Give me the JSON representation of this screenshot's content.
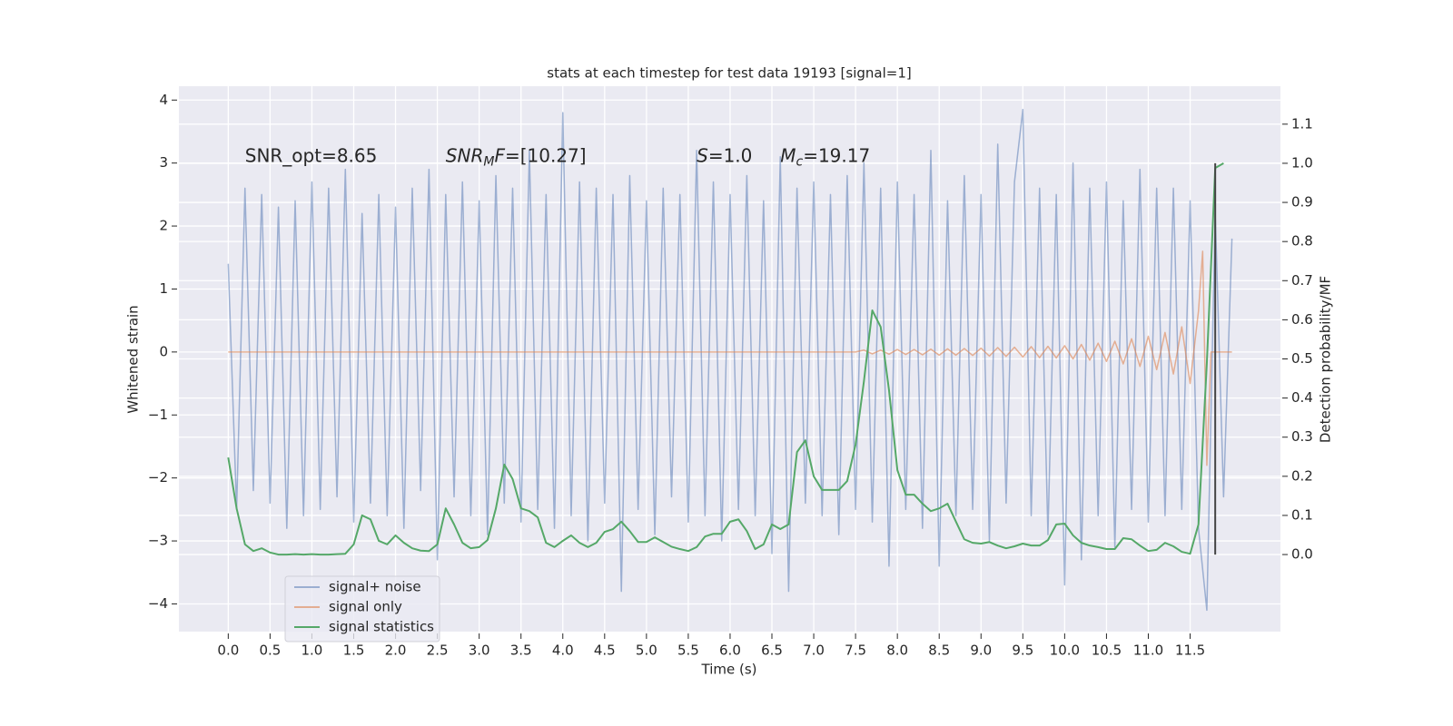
{
  "chart_data": {
    "type": "line",
    "title": "stats at each timestep for test data 19193 [signal=1]",
    "xlabel": "Time (s)",
    "ylabel": "Whitened strain",
    "y2label": "Detection probability/MF",
    "xlim": [
      -0.59,
      12.58
    ],
    "ylim": [
      -4.44,
      4.22
    ],
    "y2lim": [
      -0.197,
      1.197
    ],
    "xticks": [
      {
        "value": 0,
        "label": "0.0"
      },
      0.5,
      {
        "value": 1,
        "label": "1.0"
      },
      1.5,
      {
        "value": 2,
        "label": "2.0"
      },
      2.5,
      {
        "value": 3,
        "label": "3.0"
      },
      3.5,
      {
        "value": 4,
        "label": "4.0"
      },
      4.5,
      {
        "value": 5,
        "label": "5.0"
      },
      5.5,
      {
        "value": 6,
        "label": "6.0"
      },
      6.5,
      {
        "value": 7,
        "label": "7.0"
      },
      7.5,
      {
        "value": 8,
        "label": "8.0"
      },
      8.5,
      {
        "value": 9,
        "label": "9.0"
      },
      9.5,
      {
        "value": 10,
        "label": "10.0"
      },
      10.5,
      {
        "value": 11,
        "label": "11.0"
      },
      11.5
    ],
    "yticks": [
      {
        "value": -4,
        "label": "−4"
      },
      {
        "value": -3,
        "label": "−3"
      },
      {
        "value": -2,
        "label": "−2"
      },
      {
        "value": -1,
        "label": "−1"
      },
      0,
      1,
      2,
      3,
      4
    ],
    "y2ticks": [
      {
        "value": 0,
        "label": "0.0"
      },
      0.1,
      0.2,
      0.3,
      0.4,
      0.5,
      0.6,
      0.7,
      0.8,
      0.9,
      {
        "value": 1,
        "label": "1.0"
      },
      1.1
    ],
    "grid": true,
    "legend": "lower left",
    "series": [
      {
        "name": "signal+ noise",
        "color": "#4c72b0",
        "opacity": 0.5,
        "x": [
          0,
          0.1,
          0.2,
          0.3,
          0.4,
          0.5,
          0.6,
          0.7,
          0.8,
          0.9,
          1,
          1.1,
          1.2,
          1.3,
          1.4,
          1.5,
          1.6,
          1.7,
          1.8,
          1.9,
          2,
          2.1,
          2.2,
          2.3,
          2.4,
          2.5,
          2.6,
          2.7,
          2.8,
          2.9,
          3,
          3.1,
          3.2,
          3.3,
          3.4,
          3.5,
          3.6,
          3.7,
          3.8,
          3.9,
          4,
          4.1,
          4.2,
          4.3,
          4.4,
          4.5,
          4.6,
          4.7,
          4.8,
          4.9,
          5,
          5.1,
          5.2,
          5.3,
          5.4,
          5.5,
          5.6,
          5.7,
          5.8,
          5.9,
          6,
          6.1,
          6.2,
          6.3,
          6.4,
          6.5,
          6.6,
          6.7,
          6.8,
          6.9,
          7,
          7.1,
          7.2,
          7.3,
          7.4,
          7.5,
          7.6,
          7.7,
          7.8,
          7.9,
          8,
          8.1,
          8.2,
          8.3,
          8.4,
          8.5,
          8.6,
          8.7,
          8.8,
          8.9,
          9,
          9.1,
          9.2,
          9.3,
          9.4,
          9.5,
          9.6,
          9.7,
          9.8,
          9.9,
          10,
          10.1,
          10.2,
          10.3,
          10.4,
          10.5,
          10.6,
          10.7,
          10.8,
          10.9,
          11,
          11.1,
          11.2,
          11.3,
          11.4,
          11.5,
          11.6,
          11.7,
          11.8,
          11.9,
          12
        ],
        "values": [
          1.4,
          -2.5,
          2.6,
          -2.2,
          2.5,
          -2.4,
          2.3,
          -2.8,
          2.4,
          -2.6,
          2.7,
          -2.5,
          2.6,
          -2.3,
          2.9,
          -2.7,
          2.2,
          -2.4,
          2.5,
          -2.6,
          2.3,
          -2.8,
          2.6,
          -2.2,
          2.9,
          -3.3,
          2.5,
          -2.3,
          2.7,
          -2.6,
          2.4,
          -2.9,
          2.8,
          -2.4,
          2.6,
          -2.7,
          3.2,
          -2.5,
          2.5,
          -2.8,
          3.8,
          -2.6,
          2.7,
          -3.0,
          2.6,
          -2.4,
          2.5,
          -3.8,
          2.8,
          -2.5,
          2.4,
          -2.9,
          2.6,
          -2.3,
          2.5,
          -2.7,
          3.2,
          -2.6,
          2.7,
          -3.0,
          2.5,
          -2.5,
          2.8,
          -2.6,
          2.4,
          -3.2,
          3.1,
          -3.8,
          2.6,
          -2.4,
          2.7,
          -2.6,
          2.5,
          -2.9,
          2.8,
          -2.5,
          3.0,
          -2.7,
          2.6,
          -3.4,
          2.7,
          -2.5,
          2.5,
          -2.8,
          3.2,
          -3.4,
          2.4,
          -2.6,
          2.8,
          -2.5,
          2.5,
          -3.0,
          3.3,
          -2.4,
          2.7,
          3.85,
          -2.6,
          2.6,
          -2.9,
          2.5,
          -3.7,
          3.0,
          -3.3,
          2.6,
          -2.6,
          2.7,
          -3.1,
          2.4,
          -2.5,
          2.9,
          -2.7,
          2.6,
          -2.6,
          2.6,
          -2.5,
          2.4,
          -2.8,
          -4.1,
          2.2,
          -2.3,
          1.8
        ]
      },
      {
        "name": "signal only",
        "color": "#dd8452",
        "opacity": 0.6,
        "x": [
          0,
          7.5,
          7.6,
          7.7,
          7.8,
          7.9,
          8,
          8.1,
          8.2,
          8.3,
          8.4,
          8.5,
          8.6,
          8.7,
          8.8,
          8.9,
          9,
          9.1,
          9.2,
          9.3,
          9.4,
          9.5,
          9.6,
          9.7,
          9.8,
          9.9,
          10,
          10.1,
          10.2,
          10.3,
          10.4,
          10.5,
          10.6,
          10.7,
          10.8,
          10.9,
          11,
          11.1,
          11.2,
          11.3,
          11.4,
          11.5,
          11.6,
          11.65,
          11.7,
          11.75,
          12
        ],
        "values": [
          0,
          0,
          0.03,
          -0.03,
          0.03,
          -0.035,
          0.04,
          -0.04,
          0.04,
          -0.045,
          0.045,
          -0.05,
          0.05,
          -0.05,
          0.055,
          -0.055,
          0.06,
          -0.065,
          0.07,
          -0.07,
          0.075,
          -0.08,
          0.085,
          -0.09,
          0.09,
          -0.095,
          0.1,
          -0.11,
          0.12,
          -0.13,
          0.14,
          -0.15,
          0.17,
          -0.19,
          0.21,
          -0.23,
          0.25,
          -0.28,
          0.31,
          -0.35,
          0.4,
          -0.5,
          0.65,
          1.6,
          -1.8,
          0,
          0
        ]
      },
      {
        "name": "signal statistics",
        "color": "#55a868",
        "opacity": 1,
        "axis": "y2",
        "x": [
          0,
          0.1,
          0.2,
          0.3,
          0.4,
          0.5,
          0.6,
          0.7,
          0.8,
          0.9,
          1,
          1.1,
          1.2,
          1.3,
          1.4,
          1.5,
          1.6,
          1.7,
          1.8,
          1.9,
          2,
          2.1,
          2.2,
          2.3,
          2.4,
          2.5,
          2.6,
          2.7,
          2.8,
          2.9,
          3,
          3.1,
          3.2,
          3.3,
          3.4,
          3.5,
          3.6,
          3.7,
          3.8,
          3.9,
          4,
          4.1,
          4.2,
          4.3,
          4.4,
          4.5,
          4.6,
          4.7,
          4.8,
          4.9,
          5,
          5.1,
          5.2,
          5.3,
          5.4,
          5.5,
          5.6,
          5.7,
          5.8,
          5.9,
          6,
          6.1,
          6.2,
          6.3,
          6.4,
          6.5,
          6.6,
          6.7,
          6.8,
          6.9,
          7,
          7.1,
          7.2,
          7.3,
          7.4,
          7.5,
          7.6,
          7.7,
          7.8,
          7.9,
          8,
          8.1,
          8.2,
          8.3,
          8.4,
          8.5,
          8.6,
          8.7,
          8.8,
          8.9,
          9,
          9.1,
          9.2,
          9.3,
          9.4,
          9.5,
          9.6,
          9.7,
          9.8,
          9.9,
          10,
          10.1,
          10.2,
          10.3,
          10.4,
          10.5,
          10.6,
          10.7,
          10.8,
          10.9,
          11,
          11.1,
          11.2,
          11.3,
          11.4,
          11.5,
          11.6,
          11.7,
          11.8,
          11.9
        ],
        "values": [
          0.248,
          0.118,
          0.026,
          0.009,
          0.016,
          0.005,
          0,
          0,
          0.001,
          0,
          0.001,
          0,
          0,
          0.001,
          0.002,
          0.026,
          0.1,
          0.09,
          0.035,
          0.026,
          0.049,
          0.03,
          0.016,
          0.01,
          0.009,
          0.026,
          0.118,
          0.077,
          0.03,
          0.016,
          0.019,
          0.037,
          0.118,
          0.23,
          0.193,
          0.118,
          0.111,
          0.095,
          0.03,
          0.019,
          0.035,
          0.049,
          0.03,
          0.019,
          0.03,
          0.058,
          0.065,
          0.084,
          0.06,
          0.032,
          0.032,
          0.044,
          0.032,
          0.02,
          0.014,
          0.009,
          0.019,
          0.046,
          0.053,
          0.053,
          0.084,
          0.09,
          0.06,
          0.014,
          0.026,
          0.077,
          0.065,
          0.077,
          0.262,
          0.292,
          0.2,
          0.165,
          0.165,
          0.165,
          0.188,
          0.281,
          0.443,
          0.624,
          0.582,
          0.42,
          0.216,
          0.153,
          0.153,
          0.13,
          0.111,
          0.118,
          0.13,
          0.084,
          0.039,
          0.03,
          0.028,
          0.032,
          0.023,
          0.016,
          0.021,
          0.028,
          0.023,
          0.023,
          0.037,
          0.077,
          0.079,
          0.049,
          0.03,
          0.023,
          0.019,
          0.014,
          0.014,
          0.042,
          0.039,
          0.023,
          0.009,
          0.012,
          0.03,
          0.021,
          0.007,
          0.002,
          0.077,
          0.49,
          0.988,
          1.0
        ]
      }
    ],
    "vline": {
      "x": 11.8,
      "y2": [
        0,
        1
      ],
      "color": "#444444"
    },
    "annotations": [
      {
        "x": 0.2,
        "y": 3.1,
        "parts": [
          {
            "text": "SNR_opt=8.65"
          }
        ]
      },
      {
        "x": 2.6,
        "y": 3.1,
        "parts": [
          {
            "text": "SNR",
            "style": "italic"
          },
          {
            "text": "M",
            "style": "italic-sub"
          },
          {
            "text": "F",
            "style": "italic"
          },
          {
            "text": "=[10.27]"
          }
        ]
      },
      {
        "x": 5.6,
        "y": 3.1,
        "parts": [
          {
            "text": "S",
            "style": "italic"
          },
          {
            "text": "=1.0"
          }
        ]
      },
      {
        "x": 6.6,
        "y": 3.1,
        "parts": [
          {
            "text": "M",
            "style": "italic"
          },
          {
            "text": "c",
            "style": "italic-sub"
          },
          {
            "text": "=19.17"
          }
        ]
      }
    ]
  }
}
